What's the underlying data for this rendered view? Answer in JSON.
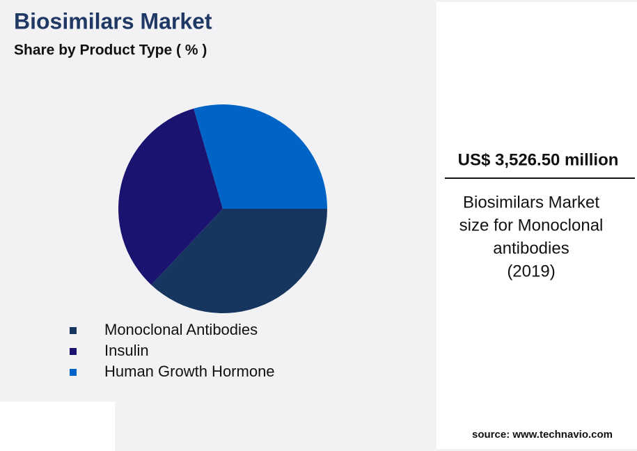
{
  "chart_data": {
    "type": "pie",
    "title": "Biosimilars Market",
    "subtitle": "Share by Product Type ( % )",
    "categories": [
      "Monoclonal Antibodies",
      "Insulin",
      "Human Growth Hormone"
    ],
    "values": [
      37,
      33.5,
      29.5
    ],
    "colors": [
      "#17365f",
      "#1a1470",
      "#0063c6"
    ]
  },
  "highlight": {
    "amount": "US$ 3,526.50 million",
    "description": [
      "Biosimilars Market",
      "size for Monoclonal",
      "antibodies",
      "(2019)"
    ],
    "source": "source: www.technavio.com"
  }
}
